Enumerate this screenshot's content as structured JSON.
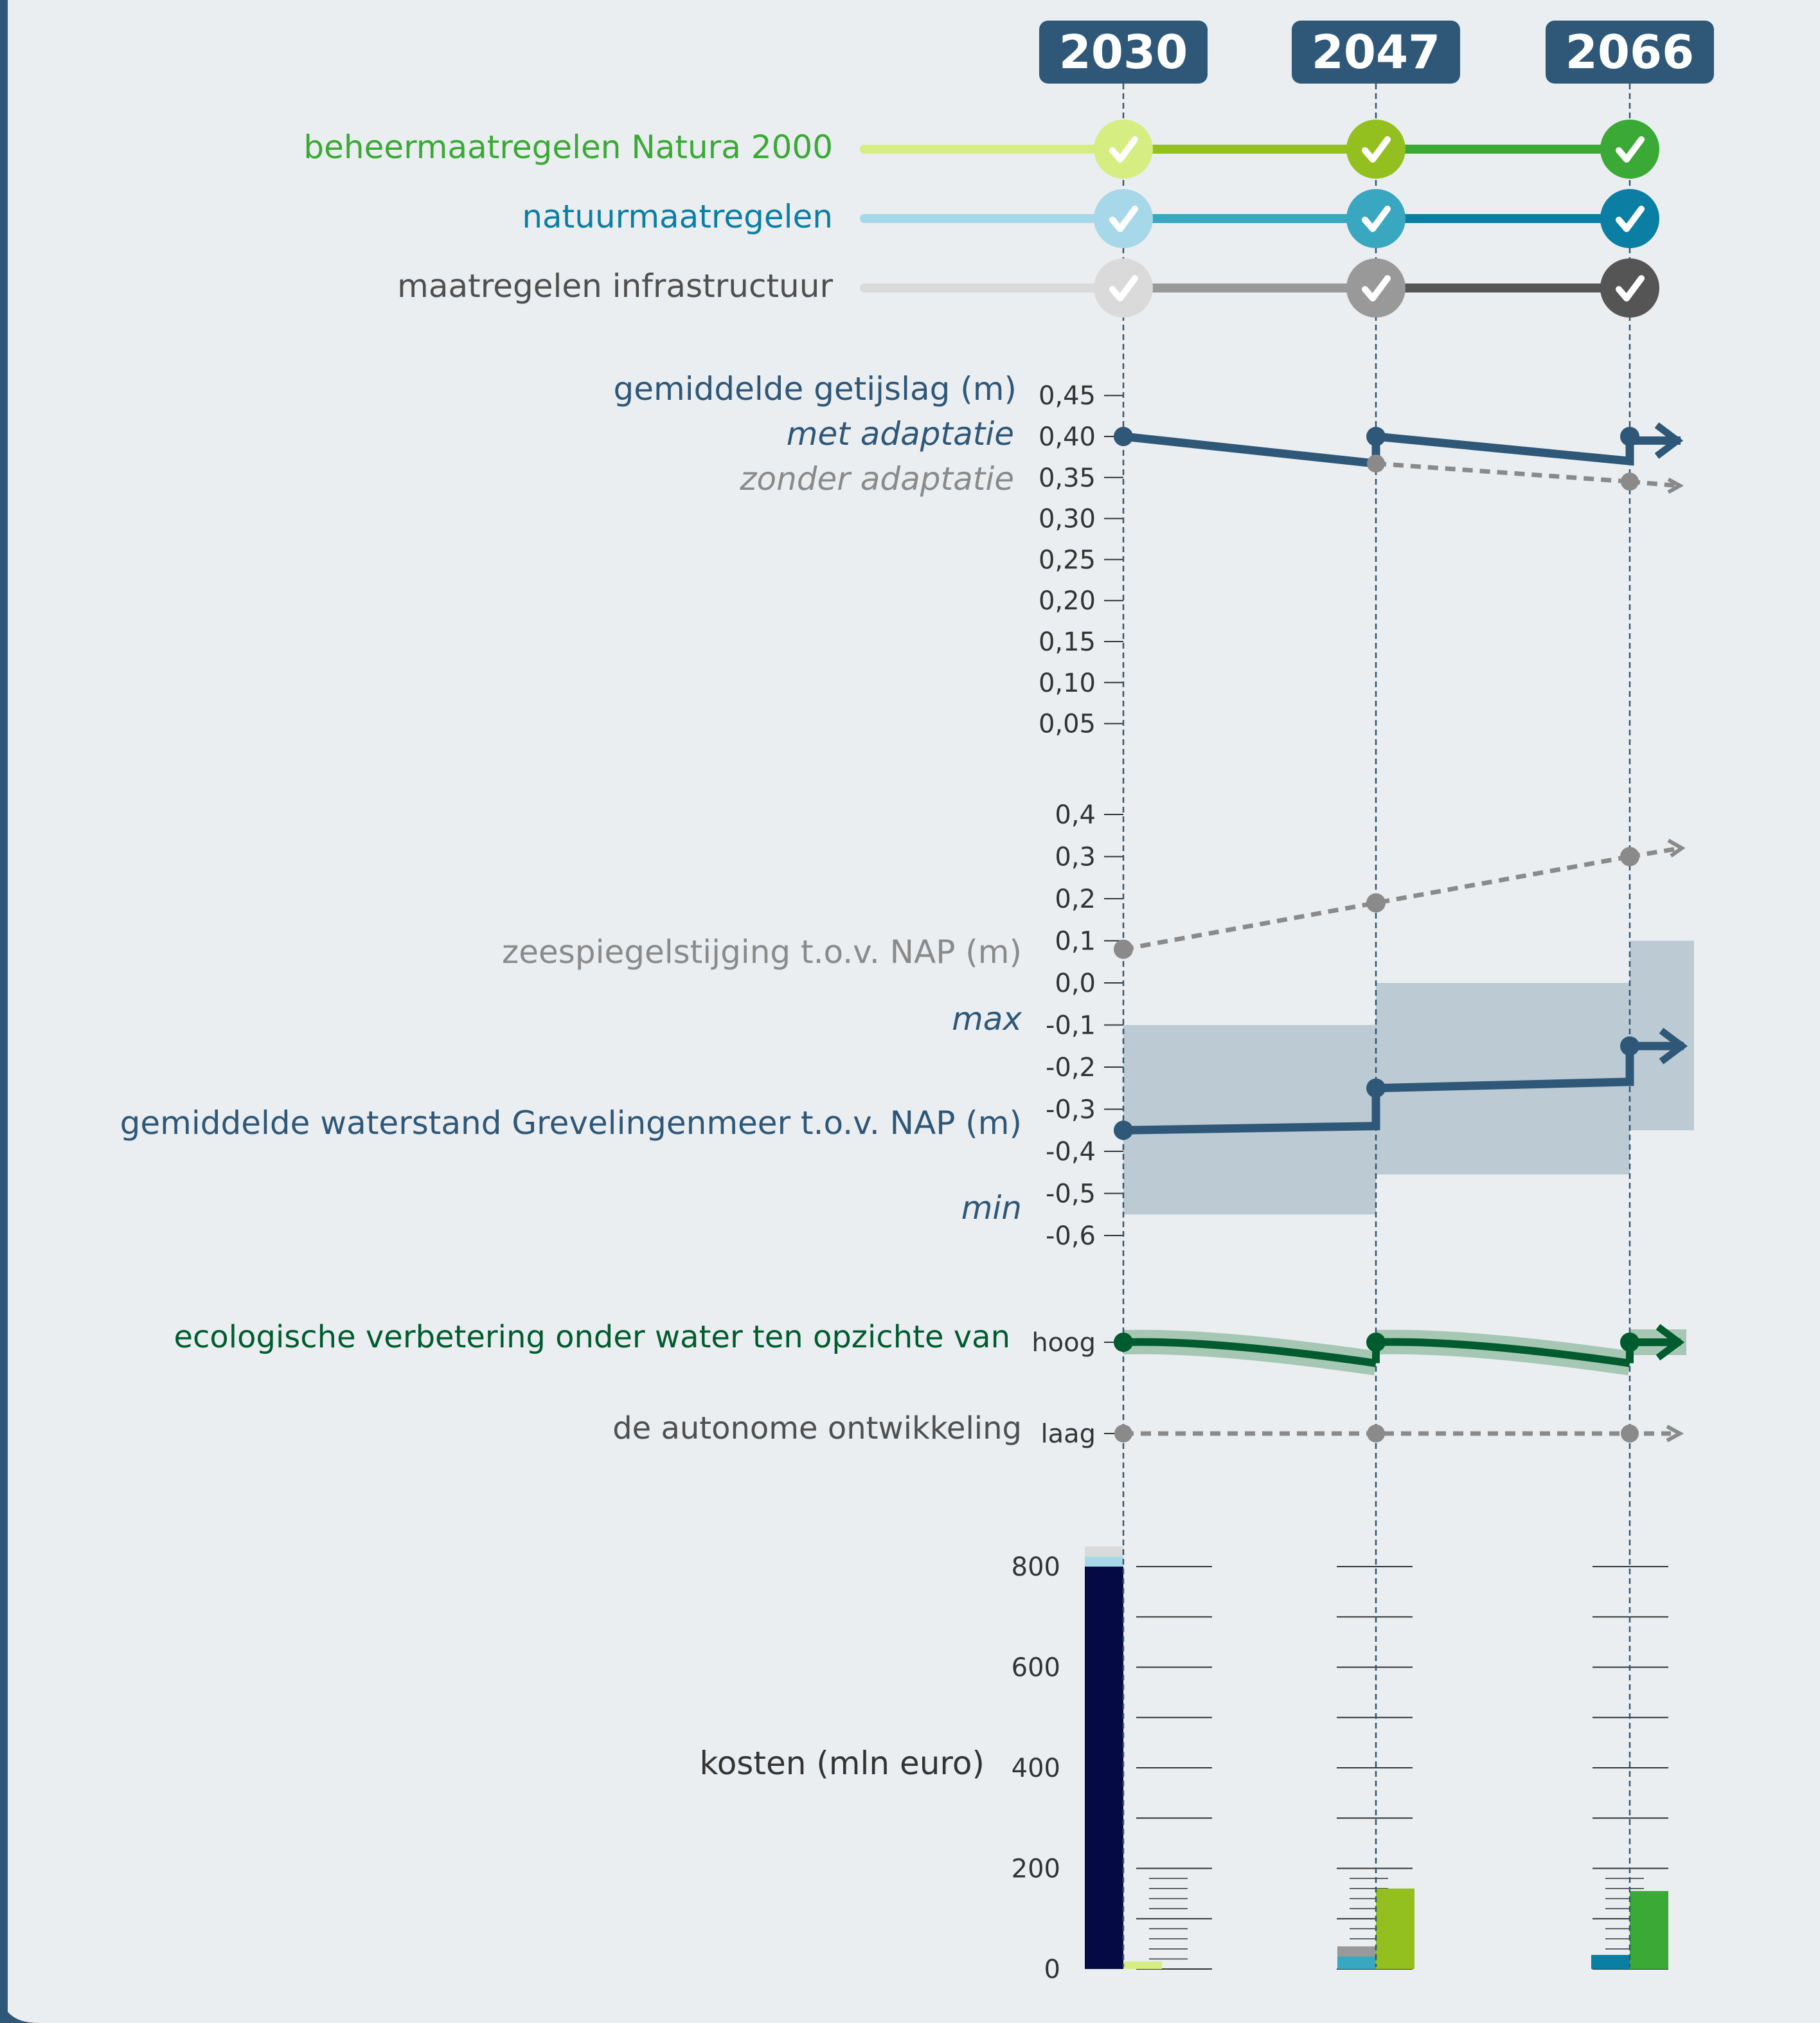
{
  "colors": {
    "background": "#eaeef1",
    "frame": "#2e5778",
    "natura": [
      "#d6ed82",
      "#93c01f",
      "#3aa935"
    ],
    "natuur": [
      "#a7d8ea",
      "#3aa7c0",
      "#0a7ea3"
    ],
    "infra": [
      "#dadada",
      "#999999",
      "#555555"
    ],
    "waterblue": "#2e5778",
    "gray": "#8a8a8a",
    "ecogreen": "#005c2e",
    "band": "#bccad3",
    "ecoband": "#a6c7b3",
    "cost_dark": "#050a44"
  },
  "years": [
    "2030",
    "2047",
    "2066"
  ],
  "measures": [
    {
      "label": "beheermaatregelen Natura 2000",
      "color": "#3aa935",
      "key": "natura"
    },
    {
      "label": "natuurmaatregelen",
      "color": "#0a7ea3",
      "key": "natuur"
    },
    {
      "label": "maatregelen infrastructuur",
      "color": "#4f4f4f",
      "key": "infra"
    }
  ],
  "labels": {
    "tidal_title": "gemiddelde getijslag (m)",
    "met_adaptatie": "met adaptatie",
    "zonder_adaptatie": "zonder adaptatie",
    "sea_level": "zeespiegelstijging t.o.v. NAP (m)",
    "max": "max",
    "water_level": "gemiddelde waterstand Grevelingenmeer t.o.v. NAP (m)",
    "min": "min",
    "eco_title": "ecologische verbetering onder water ten opzichte van",
    "eco_sub": "de autonome ontwikkeling",
    "costs": "kosten (mln euro)"
  },
  "chart_data": [
    {
      "type": "line",
      "title": "gemiddelde getijslag (m)",
      "x": [
        "2030",
        "2047",
        "2066"
      ],
      "y_ticks": [
        "0,45",
        "0,40",
        "0,35",
        "0,30",
        "0,25",
        "0,20",
        "0,15",
        "0,10",
        "0,05"
      ],
      "ylim": [
        0.05,
        0.45
      ],
      "series": [
        {
          "name": "met adaptatie",
          "points": [
            [
              2030,
              0.4
            ],
            [
              2047,
              0.367
            ],
            [
              2047,
              0.4
            ],
            [
              2066,
              0.37
            ],
            [
              2066,
              0.4
            ]
          ]
        },
        {
          "name": "zonder adaptatie",
          "points": [
            [
              2047,
              0.367
            ],
            [
              2066,
              0.345
            ]
          ],
          "dashed": true
        }
      ]
    },
    {
      "type": "line",
      "title": "zeespiegelstijging t.o.v. NAP (m)",
      "x": [
        "2030",
        "2047",
        "2066"
      ],
      "y_ticks": [
        "0,4",
        "0,3",
        "0,2",
        "0,1",
        "0,0",
        "-0,1",
        "-0,2",
        "-0,3",
        "-0,4",
        "-0,5",
        "-0,6"
      ],
      "ylim": [
        -0.6,
        0.4
      ],
      "series": [
        {
          "name": "zeespiegelstijging t.o.v. NAP (m)",
          "points": [
            [
              2030,
              0.08
            ],
            [
              2047,
              0.19
            ],
            [
              2066,
              0.3
            ]
          ],
          "dashed": true
        },
        {
          "name": "gemiddelde waterstand Grevelingenmeer t.o.v. NAP (m)",
          "points": [
            [
              2030,
              -0.35
            ],
            [
              2047,
              -0.34
            ],
            [
              2047,
              -0.25
            ],
            [
              2066,
              -0.235
            ],
            [
              2066,
              -0.15
            ]
          ]
        }
      ],
      "ranges": [
        {
          "from": 2030,
          "to": 2047,
          "min": -0.55,
          "max": -0.1
        },
        {
          "from": 2047,
          "to": 2066,
          "min": -0.455,
          "max": 0.0
        },
        {
          "from": 2066,
          "to": 2071,
          "min": -0.35,
          "max": 0.1
        }
      ]
    },
    {
      "type": "line",
      "title": "ecologische verbetering onder water ten opzichte van de autonome ontwikkeling",
      "x": [
        "2030",
        "2047",
        "2066"
      ],
      "y_ticks": [
        "hoog",
        "laag"
      ],
      "series": [
        {
          "name": "ecologische verbetering",
          "points": [
            [
              2030,
              1.0
            ],
            [
              2047,
              0.77
            ],
            [
              2047,
              1.0
            ],
            [
              2066,
              0.77
            ],
            [
              2066,
              1.0
            ]
          ]
        },
        {
          "name": "de autonome ontwikkeling",
          "points": [
            [
              2030,
              0.0
            ],
            [
              2047,
              0.0
            ],
            [
              2066,
              0.0
            ]
          ],
          "dashed": true
        }
      ]
    },
    {
      "type": "bar",
      "title": "kosten (mln euro)",
      "categories": [
        "2030",
        "2047",
        "2066"
      ],
      "y_ticks": [
        "800",
        "600",
        "400",
        "200",
        "0"
      ],
      "ylim": [
        0,
        800
      ],
      "bars": [
        {
          "year": "2030",
          "stack": [
            {
              "key": "cost_dark",
              "value": 800
            },
            {
              "key": "natuur0",
              "value": 20
            },
            {
              "key": "infra0",
              "value": 20
            }
          ],
          "natura": 15
        },
        {
          "year": "2047",
          "stack": [
            {
              "key": "natuur1",
              "value": 25
            },
            {
              "key": "infra1",
              "value": 20
            }
          ],
          "natura": 160
        },
        {
          "year": "2066",
          "stack": [
            {
              "key": "natuur2",
              "value": 28
            }
          ],
          "natura": 155
        }
      ]
    }
  ]
}
